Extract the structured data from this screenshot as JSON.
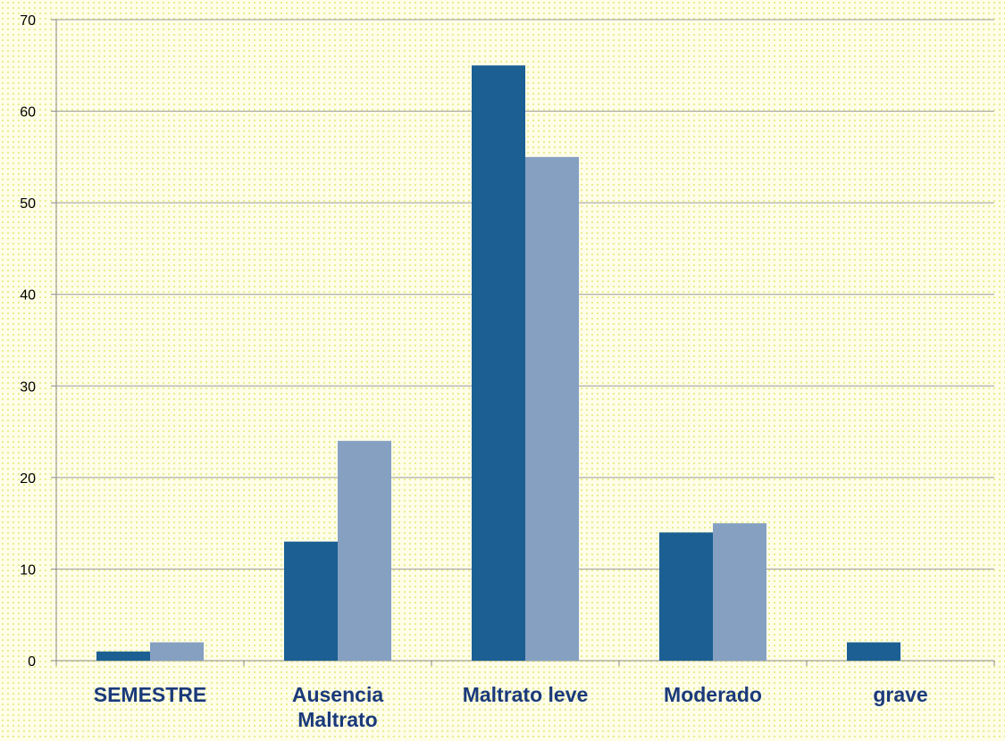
{
  "chart_data": {
    "type": "bar",
    "title": "",
    "xlabel": "",
    "ylabel": "",
    "categories": [
      [
        "SEMESTRE"
      ],
      [
        "Ausencia",
        "Maltrato"
      ],
      [
        "Maltrato leve"
      ],
      [
        "Moderado"
      ],
      [
        "grave"
      ]
    ],
    "series": [
      {
        "values": [
          1,
          13,
          65,
          14,
          2
        ],
        "color": "#1b5f93"
      },
      {
        "values": [
          2,
          24,
          55,
          15,
          null
        ],
        "color": "#86a0c2"
      }
    ],
    "ylim": [
      0,
      70
    ],
    "yticks": [
      0,
      10,
      20,
      30,
      40,
      50,
      60,
      70
    ],
    "grid": true,
    "legend": "none",
    "colors": {
      "category_label": "#1b3a7a",
      "gridline": "#9a9a9a",
      "axis": "#8a8a8a"
    }
  }
}
